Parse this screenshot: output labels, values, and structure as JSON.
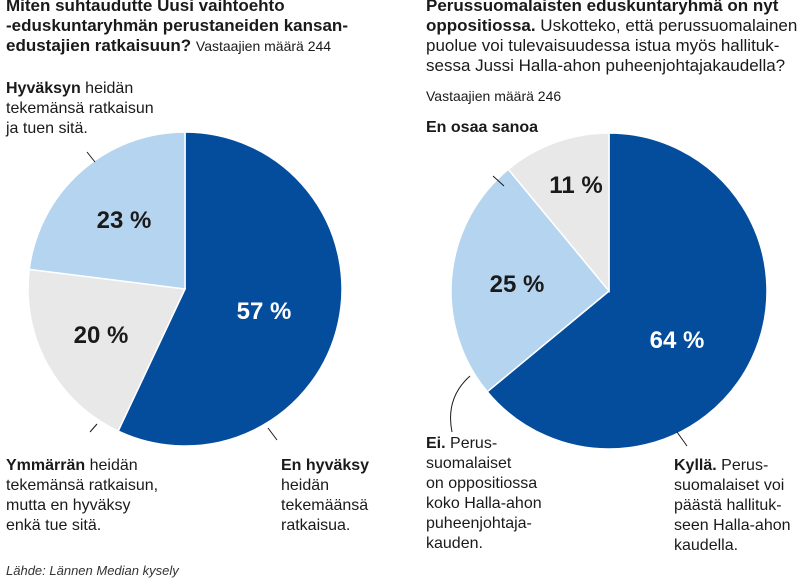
{
  "chart_data": [
    {
      "type": "pie",
      "title": "Miten suhtaudutte Uusi vaihtoehto -eduskuntaryhmän perustaneiden kansanedustajien ratkaisuun?",
      "title_lines": [
        "Miten suhtaudutte Uusi vaihtoehto",
        "-eduskuntaryhmän perustaneiden kansan-",
        "edustajien ratkaisuun?"
      ],
      "respondents": "Vastaajien määrä 244",
      "slices": [
        {
          "bold": "En hyväksy",
          "text": "heidän tekemäänsä ratkaisua",
          "text_lines": [
            "heidän",
            "tekemäänsä",
            "ratkaisua."
          ],
          "value": 57,
          "label": "57 %",
          "color": "#044c9c"
        },
        {
          "bold": "Ymmärrän",
          "text": "heidän tekemänsä ratkaisun, mutta en hyväksy enkä tue sitä",
          "text_lines": [
            "heidän",
            "tekemänsä ratkaisun,",
            "mutta en hyväksy",
            "enkä tue sitä."
          ],
          "value": 20,
          "label": "20 %",
          "color": "#e8e8e8"
        },
        {
          "bold": "Hyväksyn",
          "text": "heidän tekemänsä ratkaisun ja tuen sitä",
          "text_lines": [
            "heidän",
            "tekemänsä ratkaisun",
            "ja tuen sitä."
          ],
          "value": 23,
          "label": "23 %",
          "color": "#b4d4f0"
        }
      ]
    },
    {
      "type": "pie",
      "title": "Perussuomalaisten eduskuntaryhmä on nyt oppositiossa.",
      "title_lines": [
        "Perussuomalaisten eduskuntaryhmä on nyt",
        "oppositiossa."
      ],
      "question": "Uskotteko, että perussuomalainen puolue voi tulevaisuudessa istua myös hallituksessa Jussi Halla-ahon puheenjohtajakaudella?",
      "question_lines": [
        " Uskotteko, että perussuomalainen",
        "puolue voi tulevaisuudessa istua myös hallituk-",
        "sessa Jussi Halla-ahon puheenjohtajakaudella?"
      ],
      "respondents": "Vastaajien määrä 246",
      "slices": [
        {
          "bold": "Kyllä.",
          "text": "Perussuomalaiset voi päästä hallitukseen Halla-ahon kaudella",
          "text_lines": [
            "Perus-",
            "suomalaiset voi",
            "päästä hallituk-",
            "seen Halla-ahon",
            "kaudella."
          ],
          "value": 64,
          "label": "64 %",
          "color": "#044c9c"
        },
        {
          "bold": "Ei.",
          "text": "Perussuomalaiset on oppositiossa koko Halla-ahon puheenjohtajakauden",
          "text_lines": [
            "Perus-",
            "suomalaiset",
            "on oppositiossa",
            "koko Halla-ahon",
            "puheenjohtaja-",
            "kauden."
          ],
          "value": 25,
          "label": "25 %",
          "color": "#b4d4f0"
        },
        {
          "bold": "En osaa sanoa",
          "text": "",
          "text_lines": [],
          "value": 11,
          "label": "11 %",
          "color": "#e8e8e8"
        }
      ]
    }
  ],
  "source": "Lähde: Lännen Median kysely"
}
